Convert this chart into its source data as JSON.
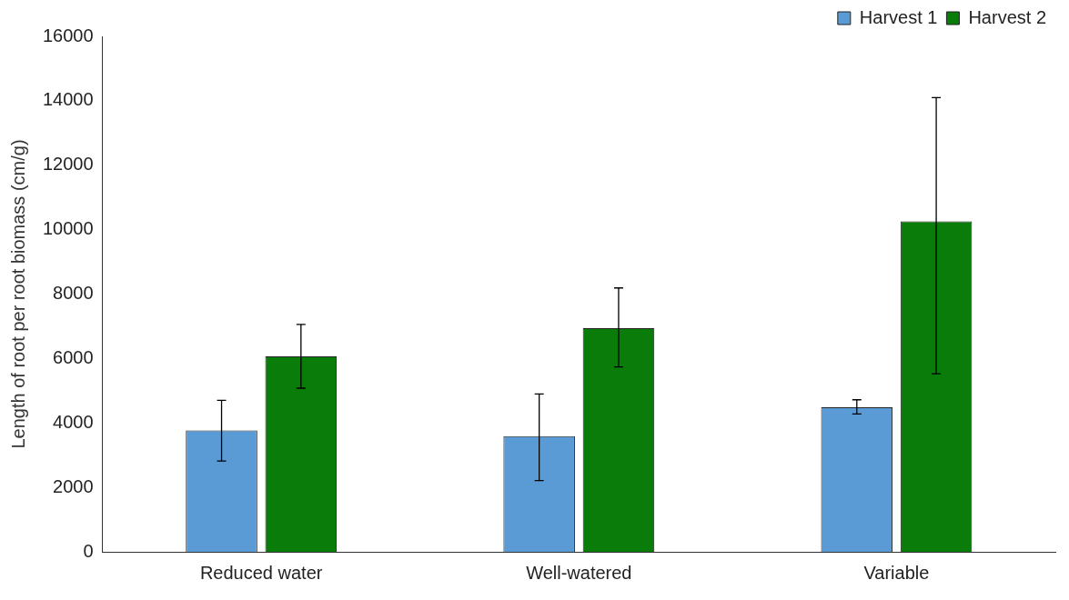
{
  "chart_data": {
    "type": "bar",
    "ylabel": "Length of root per root biomass (cm/g)",
    "categories": [
      "Reduced water",
      "Well-watered",
      "Variable"
    ],
    "series": [
      {
        "name": "Harvest 1",
        "color": "#5b9bd5",
        "values": [
          3770,
          3590,
          4490
        ],
        "errors": [
          [
            2820,
            4700
          ],
          [
            2210,
            4900
          ],
          [
            4280,
            4720
          ]
        ]
      },
      {
        "name": "Harvest 2",
        "color": "#0a7c0a",
        "values": [
          6070,
          6940,
          10260
        ],
        "errors": [
          [
            5080,
            7060
          ],
          [
            5740,
            8190
          ],
          [
            5530,
            14100
          ]
        ]
      }
    ],
    "ylim": [
      0,
      16000
    ],
    "yticks": [
      0,
      2000,
      4000,
      6000,
      8000,
      10000,
      12000,
      14000,
      16000
    ],
    "grid": false,
    "legend": "top right"
  }
}
